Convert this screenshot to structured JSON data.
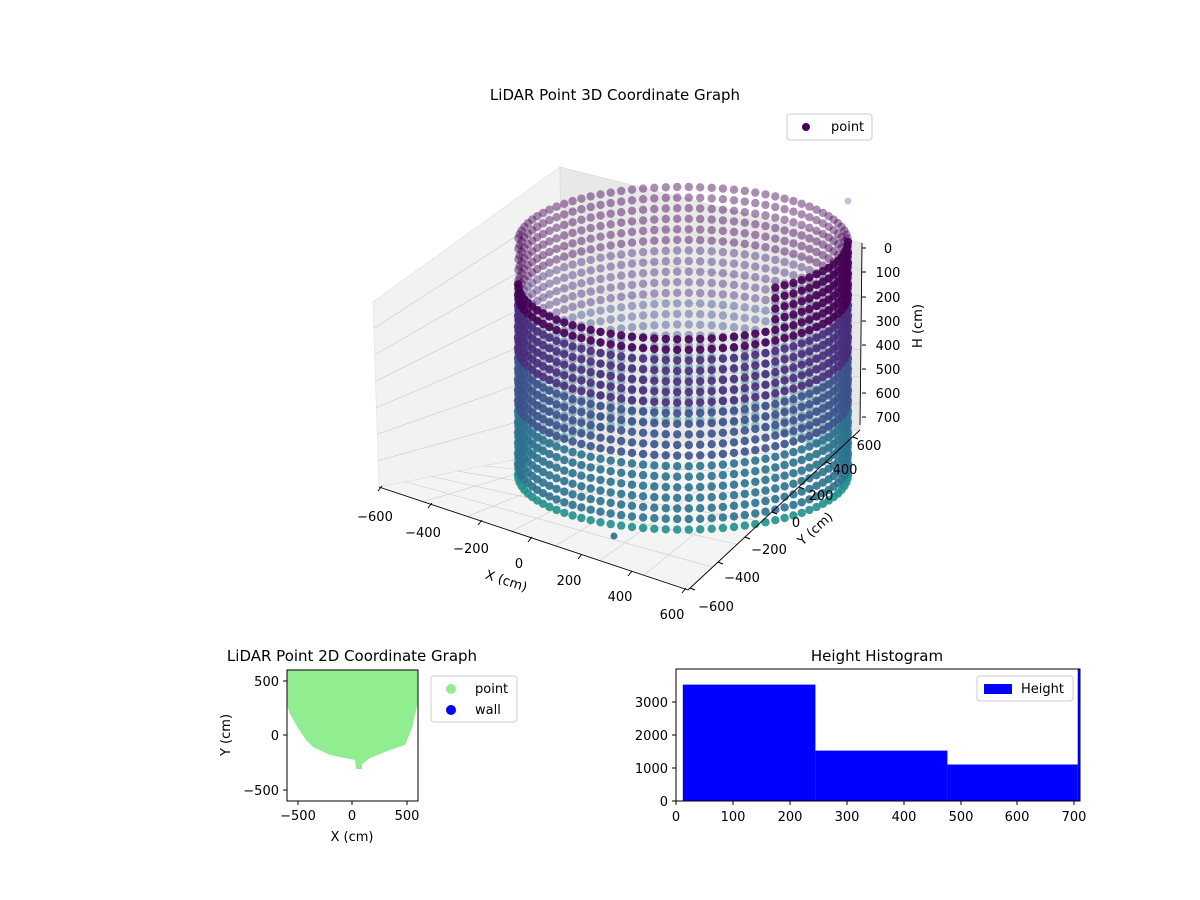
{
  "chart_data": [
    {
      "type": "scatter",
      "projection": "3d",
      "title": "LiDAR Point 3D Coordinate Graph",
      "xlabel": "X (cm)",
      "ylabel": "Y (cm)",
      "zlabel": "H (cm)",
      "xticks": [
        "−600",
        "−400",
        "−200",
        "0",
        "200",
        "400",
        "600"
      ],
      "yticks": [
        "−600",
        "−400",
        "−200",
        "0",
        "200",
        "400",
        "600"
      ],
      "zticks": [
        "0",
        "100",
        "200",
        "300",
        "400",
        "500",
        "600",
        "700"
      ],
      "xlim": [
        -600,
        600
      ],
      "ylim": [
        -600,
        600
      ],
      "zlim": [
        0,
        700
      ],
      "z_axis_inverted": true,
      "series": [
        {
          "name": "point",
          "color": "#440154",
          "colormap": "viridis",
          "description_values": {
            "radius_cm": 560,
            "height_range_cm": [
              0,
              700
            ],
            "open_side": "front-left"
          }
        }
      ],
      "legend": {
        "entries": [
          "point"
        ],
        "placement": "upper right"
      },
      "grid": true
    },
    {
      "type": "scatter",
      "title": "LiDAR Point 2D Coordinate Graph",
      "xlabel": "X (cm)",
      "ylabel": "Y (cm)",
      "xticks": [
        "−500",
        "0",
        "500"
      ],
      "yticks": [
        "−500",
        "0",
        "500"
      ],
      "xlim": [
        -600,
        600
      ],
      "ylim": [
        -600,
        600
      ],
      "series": [
        {
          "name": "point",
          "color": "#90ee90"
        },
        {
          "name": "wall",
          "color": "#0000ff"
        }
      ],
      "legend": {
        "entries": [
          "point",
          "wall"
        ],
        "placement": "outside right"
      },
      "grid": false
    },
    {
      "type": "bar",
      "title": "Height Histogram",
      "xticks": [
        "0",
        "100",
        "200",
        "300",
        "400",
        "500",
        "600",
        "700"
      ],
      "yticks": [
        "0",
        "1000",
        "2000",
        "3000"
      ],
      "xlim": [
        0,
        710
      ],
      "ylim": [
        0,
        3800
      ],
      "bins": [
        {
          "x0": 12,
          "x1": 245,
          "count": 3350
        },
        {
          "x0": 245,
          "x1": 477,
          "count": 1450
        },
        {
          "x0": 477,
          "x1": 706,
          "count": 1050
        },
        {
          "x0": 706,
          "x1": 711,
          "count": 3800
        }
      ],
      "series": [
        {
          "name": "Height",
          "color": "#0000ff"
        }
      ],
      "legend": {
        "entries": [
          "Height"
        ],
        "placement": "upper right"
      },
      "grid": false
    }
  ]
}
